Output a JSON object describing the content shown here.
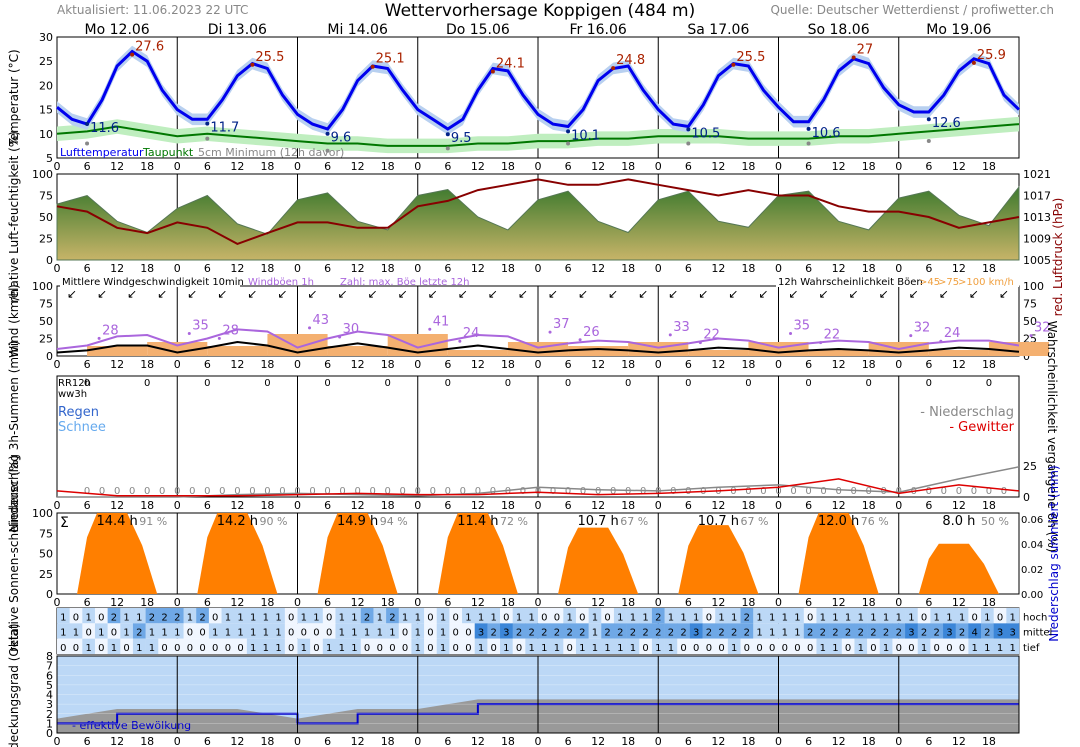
{
  "header": {
    "updated": "Aktualisiert: 11.06.2023 22 UTC",
    "title": "Wettervorhersage Koppigen (484 m)",
    "source": "Quelle: Deutscher Wetterdienst / profiwetter.ch"
  },
  "days": [
    "Mo 12.06",
    "Di 13.06",
    "Mi 14.06",
    "Do 15.06",
    "Fr 16.06",
    "Sa 17.06",
    "So 18.06",
    "Mo 19.06"
  ],
  "hour_ticks": [
    "0",
    "6",
    "12",
    "18"
  ],
  "colors": {
    "temp": "#0000ee",
    "dew": "#007700",
    "tmax": "#aa2200",
    "tmin": "#002288",
    "pressure": "#880000",
    "gust": "#aa66dd",
    "wind": "#000000",
    "sun": "#ff7f00",
    "rain_line": "#dd0000",
    "prob_line": "#888888"
  },
  "chart_data": [
    {
      "panel": "temperature",
      "type": "line",
      "ylabel": "Temperatur (°C)",
      "ylim": [
        5,
        30
      ],
      "yticks": [
        5,
        10,
        15,
        20,
        25,
        30
      ],
      "legend": [
        "Lufttemperatur",
        "Taupunkt",
        "5cm Minimum (12h davor)"
      ],
      "daily_max": [
        27.6,
        25.5,
        25.1,
        24.1,
        24.8,
        25.5,
        27.0,
        25.9
      ],
      "daily_min": [
        11.6,
        11.7,
        9.6,
        9.5,
        10.1,
        10.5,
        10.6,
        12.6
      ],
      "ground_min": [
        8,
        9,
        6.5,
        7,
        8,
        8,
        8,
        8.5
      ],
      "series": [
        {
          "name": "Lufttemperatur",
          "x": [
            0,
            3,
            6,
            9,
            12,
            15,
            18,
            21,
            24,
            27,
            30,
            33,
            36,
            39,
            42,
            45,
            48,
            51,
            54,
            57,
            60,
            63,
            66,
            69,
            72,
            75,
            78,
            81,
            84,
            87,
            90,
            93,
            96,
            99,
            102,
            105,
            108,
            111,
            114,
            117,
            120,
            123,
            126,
            129,
            132,
            135,
            138,
            141,
            144,
            147,
            150,
            153,
            156,
            159,
            162,
            165,
            168,
            171,
            174,
            177,
            180,
            183,
            186,
            189,
            192
          ],
          "values": [
            15.5,
            13,
            12,
            17,
            24,
            27,
            25,
            19,
            15,
            13,
            13,
            17,
            22,
            24.5,
            23.5,
            18,
            14,
            12,
            11,
            15,
            21,
            24,
            23.5,
            19,
            15,
            13,
            11,
            13,
            19,
            23.5,
            23,
            18,
            14,
            12,
            11.5,
            15,
            21,
            23.5,
            24,
            19,
            15,
            12,
            11.5,
            16,
            22,
            24.5,
            24,
            19,
            15.5,
            12.5,
            12.5,
            17,
            23,
            25.5,
            24.5,
            19.5,
            16,
            14.5,
            14.5,
            18,
            23,
            25.5,
            24.5,
            18,
            15
          ]
        },
        {
          "name": "Taupunkt",
          "x": [
            0,
            6,
            12,
            18,
            24,
            30,
            36,
            42,
            48,
            54,
            60,
            66,
            72,
            78,
            84,
            90,
            96,
            102,
            108,
            114,
            120,
            126,
            132,
            138,
            144,
            150,
            156,
            162,
            168,
            174,
            180,
            186,
            192
          ],
          "values": [
            10,
            10.5,
            11.5,
            10.5,
            9.5,
            10,
            9.5,
            9,
            8.5,
            8,
            8,
            7.5,
            7.5,
            7.5,
            8,
            8,
            8.5,
            8.5,
            9,
            9,
            9.5,
            9.5,
            9.5,
            9,
            9,
            9,
            9.5,
            9.5,
            10,
            10.5,
            11,
            11.5,
            12
          ]
        }
      ]
    },
    {
      "panel": "humidity_pressure",
      "type": "area",
      "ylabel": "relative Luft-feuchtigkeit (%)",
      "ylim": [
        0,
        100
      ],
      "yticks": [
        0,
        25,
        50,
        75,
        100
      ],
      "y2label": "red. Luftdruck (hPa)",
      "y2lim": [
        1005,
        1021
      ],
      "y2ticks": [
        1005,
        1009,
        1013,
        1017,
        1021
      ],
      "series": [
        {
          "name": "Luftfeuchtigkeit",
          "x": [
            0,
            6,
            12,
            18,
            24,
            30,
            36,
            42,
            48,
            54,
            60,
            66,
            72,
            78,
            84,
            90,
            96,
            102,
            108,
            114,
            120,
            126,
            132,
            138,
            144,
            150,
            156,
            162,
            168,
            174,
            180,
            186,
            192
          ],
          "values": [
            65,
            75,
            45,
            32,
            60,
            75,
            42,
            30,
            70,
            78,
            45,
            35,
            75,
            82,
            50,
            35,
            70,
            80,
            45,
            32,
            70,
            80,
            45,
            38,
            75,
            80,
            45,
            35,
            72,
            80,
            52,
            40,
            85
          ]
        },
        {
          "name": "Luftdruck",
          "x": [
            0,
            6,
            12,
            18,
            24,
            30,
            36,
            42,
            48,
            54,
            60,
            66,
            72,
            78,
            84,
            90,
            96,
            102,
            108,
            114,
            120,
            126,
            132,
            138,
            144,
            150,
            156,
            162,
            168,
            174,
            180,
            186,
            192
          ],
          "values": [
            1015,
            1014,
            1011,
            1010,
            1012,
            1011,
            1008,
            1010,
            1012,
            1012,
            1011,
            1011,
            1015,
            1016,
            1018,
            1019,
            1020,
            1019,
            1019,
            1020,
            1019,
            1018,
            1017,
            1018,
            1017,
            1017,
            1015,
            1014,
            1014,
            1013,
            1011,
            1012,
            1013
          ]
        }
      ]
    },
    {
      "panel": "wind",
      "type": "line",
      "ylabel": "Wind (km/h)",
      "ylim": [
        0,
        100
      ],
      "yticks": [
        0,
        25,
        50,
        75,
        100
      ],
      "legend": [
        "Mittlere Windgeschwindigkeit 10min",
        "Windböen 1h",
        "Zahl: max. Böe letzte 12h"
      ],
      "legend_right": [
        "12h Wahrscheinlichkeit Böen",
        ">45",
        ">75",
        ">100 km/h"
      ],
      "max_gust_labels": [
        28,
        35,
        28,
        43,
        30,
        41,
        24,
        37,
        26,
        33,
        22,
        35,
        22,
        32,
        24,
        32
      ],
      "series": [
        {
          "name": "Windböen 1h",
          "x": [
            0,
            6,
            12,
            18,
            24,
            30,
            36,
            42,
            48,
            54,
            60,
            66,
            72,
            78,
            84,
            90,
            96,
            102,
            108,
            114,
            120,
            126,
            132,
            138,
            144,
            150,
            156,
            162,
            168,
            174,
            180,
            186,
            192
          ],
          "values": [
            10,
            15,
            28,
            30,
            15,
            25,
            38,
            35,
            12,
            25,
            35,
            30,
            12,
            22,
            30,
            28,
            12,
            18,
            22,
            20,
            12,
            18,
            25,
            22,
            12,
            18,
            22,
            20,
            10,
            18,
            22,
            22,
            15
          ]
        },
        {
          "name": "Mittlere Windgeschwindigkeit",
          "x": [
            0,
            6,
            12,
            18,
            24,
            30,
            36,
            42,
            48,
            54,
            60,
            66,
            72,
            78,
            84,
            90,
            96,
            102,
            108,
            114,
            120,
            126,
            132,
            138,
            144,
            150,
            156,
            162,
            168,
            174,
            180,
            186,
            192
          ],
          "values": [
            5,
            8,
            15,
            15,
            5,
            12,
            20,
            15,
            5,
            12,
            18,
            12,
            5,
            10,
            15,
            10,
            5,
            8,
            10,
            8,
            5,
            8,
            12,
            10,
            5,
            8,
            10,
            8,
            5,
            8,
            12,
            10,
            6
          ]
        }
      ]
    },
    {
      "panel": "precipitation",
      "type": "line",
      "ylabel": "Niederschlag 3h-Summen (mm)",
      "y2label": "Wahrscheinlichkeit vergangene 6h (%)",
      "left_labels": [
        "RR12h",
        "ww3h",
        "Regen",
        "Schnee"
      ],
      "legend": [
        "- Niederschlag",
        "- Gewitter"
      ],
      "rr12h": [
        "0",
        "0",
        "0",
        "0",
        "0",
        "0",
        "0",
        "0",
        "0",
        "0",
        "0",
        "0",
        "0",
        "0",
        "0",
        "0"
      ],
      "series": [
        {
          "name": "Niederschlag",
          "x": [
            0,
            12,
            24,
            36,
            48,
            60,
            72,
            84,
            96,
            108,
            120,
            132,
            144,
            156,
            168,
            180,
            192
          ],
          "values": [
            0,
            0,
            0,
            2,
            3,
            2,
            1,
            3,
            8,
            6,
            5,
            8,
            10,
            6,
            4,
            15,
            25
          ]
        },
        {
          "name": "Gewitter",
          "x": [
            0,
            12,
            24,
            36,
            48,
            60,
            72,
            84,
            96,
            108,
            120,
            132,
            144,
            156,
            168,
            180,
            192
          ],
          "values": [
            5,
            1,
            1,
            1,
            2,
            3,
            2,
            2,
            4,
            2,
            3,
            5,
            8,
            15,
            3,
            10,
            5
          ]
        }
      ]
    },
    {
      "panel": "sunshine",
      "type": "area",
      "ylabel": "relative Sonnen-scheindauer (%)",
      "ylim": [
        0,
        100
      ],
      "yticks": [
        0,
        25,
        50,
        75,
        100
      ],
      "y2label": "Niederschlag summiert (mm)",
      "y2ticks": [
        "0.00",
        "0.02",
        "0.04",
        "0.06"
      ],
      "sigma": "Σ",
      "sun_hours": [
        "14.4 h",
        "14.2 h",
        "14.9 h",
        "11.4 h",
        "10.7 h",
        "10.7 h",
        "12.0 h",
        "8.0 h"
      ],
      "sun_percent": [
        "91 %",
        "90 %",
        "94 %",
        "72 %",
        "67 %",
        "67 %",
        "76 %",
        "50 %"
      ],
      "daily_peak": [
        100,
        100,
        100,
        100,
        82,
        85,
        100,
        62
      ]
    },
    {
      "panel": "cloud_layers",
      "type": "table",
      "row_labels": [
        "hoch",
        "mittel",
        "tief"
      ],
      "rows": [
        "1010211222120111110110112121101011101100101011121110112111101111111101110101",
        "1101012111001111110000111110101003232222221222222232222111122222222322324233",
        "0010101100000001110101110000101001010111011111011000010000001101010010001111"
      ]
    },
    {
      "panel": "cloud_cover",
      "type": "line",
      "ylabel": "Bedeckungsgrad (Okta)",
      "ylim": [
        0,
        8
      ],
      "yticks": [
        0,
        1,
        2,
        3,
        4,
        5,
        6,
        7,
        8
      ],
      "legend": [
        "effektive Bewölkung"
      ],
      "series": [
        {
          "name": "effektive Bewölkung",
          "x": [
            0,
            12,
            24,
            36,
            48,
            60,
            72,
            84,
            96,
            108,
            120,
            132,
            144,
            156,
            168,
            180,
            192
          ],
          "values": [
            1,
            2,
            2,
            2,
            1,
            2,
            2,
            3,
            3,
            3,
            3,
            3,
            3,
            3,
            3,
            3,
            3
          ]
        }
      ]
    }
  ]
}
